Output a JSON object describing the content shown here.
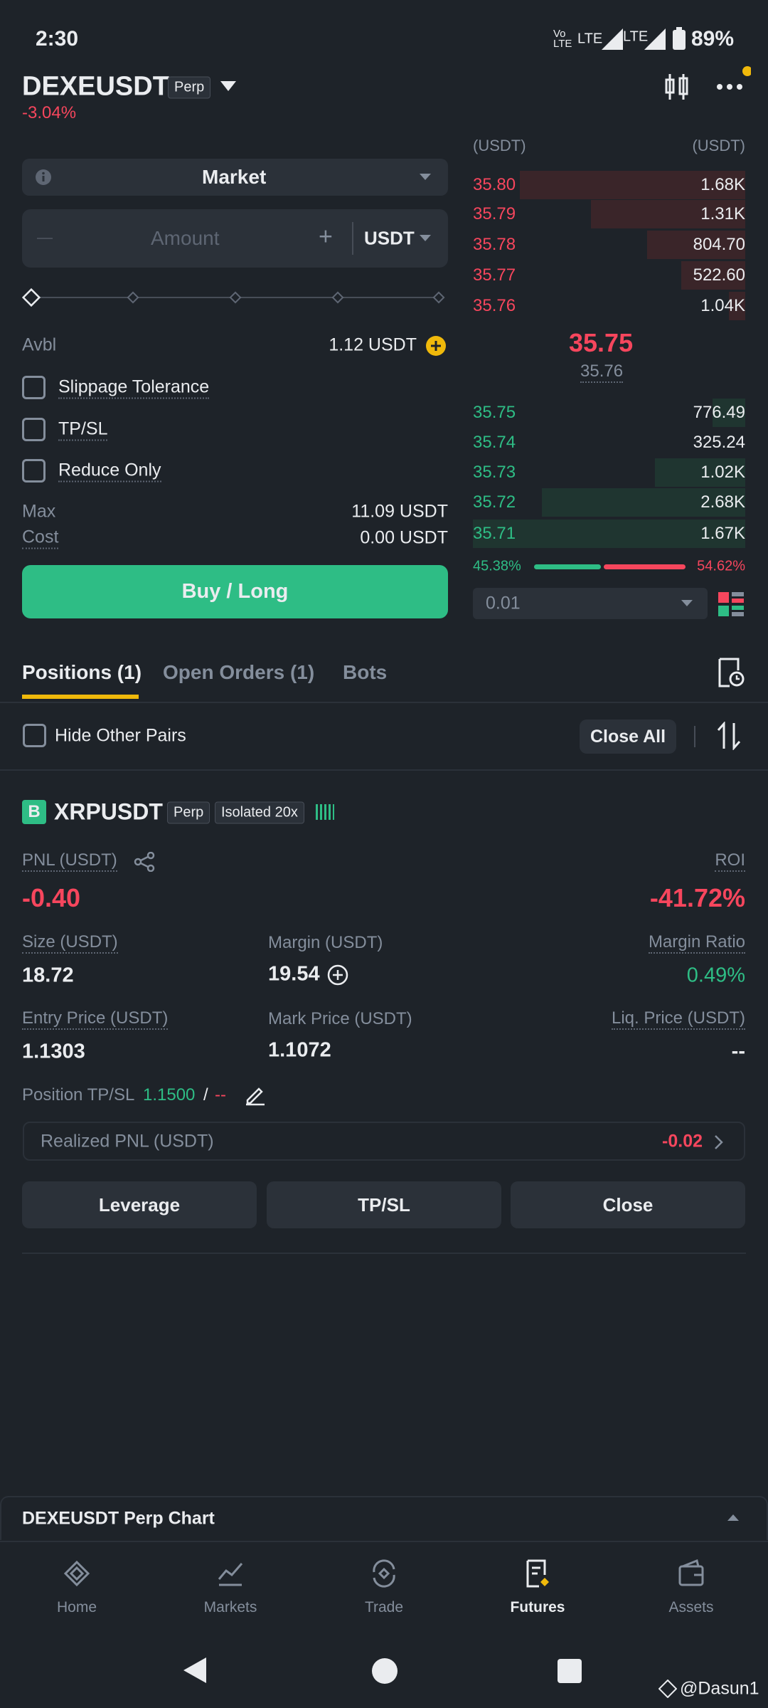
{
  "status_bar": {
    "time": "2:30",
    "network": [
      "Vo LTE",
      "LTE",
      "LTE"
    ],
    "battery": "89%"
  },
  "header": {
    "symbol": "DEXEUSDT",
    "contract": "Perp",
    "change": "-3.04%"
  },
  "order_form": {
    "order_type": "Market",
    "amount_placeholder": "Amount",
    "unit": "USDT",
    "avbl_label": "Avbl",
    "avbl_value": "1.12 USDT",
    "options": [
      "Slippage Tolerance",
      "TP/SL",
      "Reduce Only"
    ],
    "max_label": "Max",
    "max_value": "11.09 USDT",
    "cost_label": "Cost",
    "cost_value": "0.00 USDT",
    "submit": "Buy / Long"
  },
  "order_book": {
    "header": [
      "(USDT)",
      "(USDT)"
    ],
    "asks": [
      [
        "35.80",
        "1.68K"
      ],
      [
        "35.79",
        "1.31K"
      ],
      [
        "35.78",
        "804.70"
      ],
      [
        "35.77",
        "522.60"
      ],
      [
        "35.76",
        "1.04K"
      ]
    ],
    "last_price": "35.75",
    "mark_price": "35.76",
    "bids": [
      [
        "35.75",
        "776.49"
      ],
      [
        "35.74",
        "325.24"
      ],
      [
        "35.73",
        "1.02K"
      ],
      [
        "35.72",
        "2.68K"
      ],
      [
        "35.71",
        "1.67K"
      ]
    ],
    "buy_ratio": "45.38%",
    "sell_ratio": "54.62%",
    "tick_size": "0.01"
  },
  "tabs": [
    "Positions (1)",
    "Open Orders (1)",
    "Bots"
  ],
  "filter": {
    "hide_other_pairs": "Hide Other Pairs",
    "close_all": "Close All"
  },
  "position": {
    "side_badge": "B",
    "symbol": "XRPUSDT",
    "contract": "Perp",
    "margin_mode": "Isolated 20x",
    "pnl_label": "PNL (USDT)",
    "pnl": "-0.40",
    "roi_label": "ROI",
    "roi": "-41.72%",
    "fields": [
      {
        "label": "Size (USDT)",
        "value": "18.72"
      },
      {
        "label": "Margin (USDT)",
        "value": "19.54"
      },
      {
        "label": "Margin Ratio",
        "value": "0.49%"
      },
      {
        "label": "Entry Price (USDT)",
        "value": "1.1303"
      },
      {
        "label": "Mark Price (USDT)",
        "value": "1.1072"
      },
      {
        "label": "Liq. Price (USDT)",
        "value": "--"
      }
    ],
    "tpsl_label": "Position TP/SL",
    "tp": "1.1500",
    "separator": "/",
    "sl": "--",
    "realized_pnl_label": "Realized PNL (USDT)",
    "realized_pnl": "-0.02",
    "actions": [
      "Leverage",
      "TP/SL",
      "Close"
    ]
  },
  "chart_bar": {
    "title": "DEXEUSDT Perp Chart"
  },
  "nav": [
    "Home",
    "Markets",
    "Trade",
    "Futures",
    "Assets"
  ],
  "watermark": "@Dasun1"
}
